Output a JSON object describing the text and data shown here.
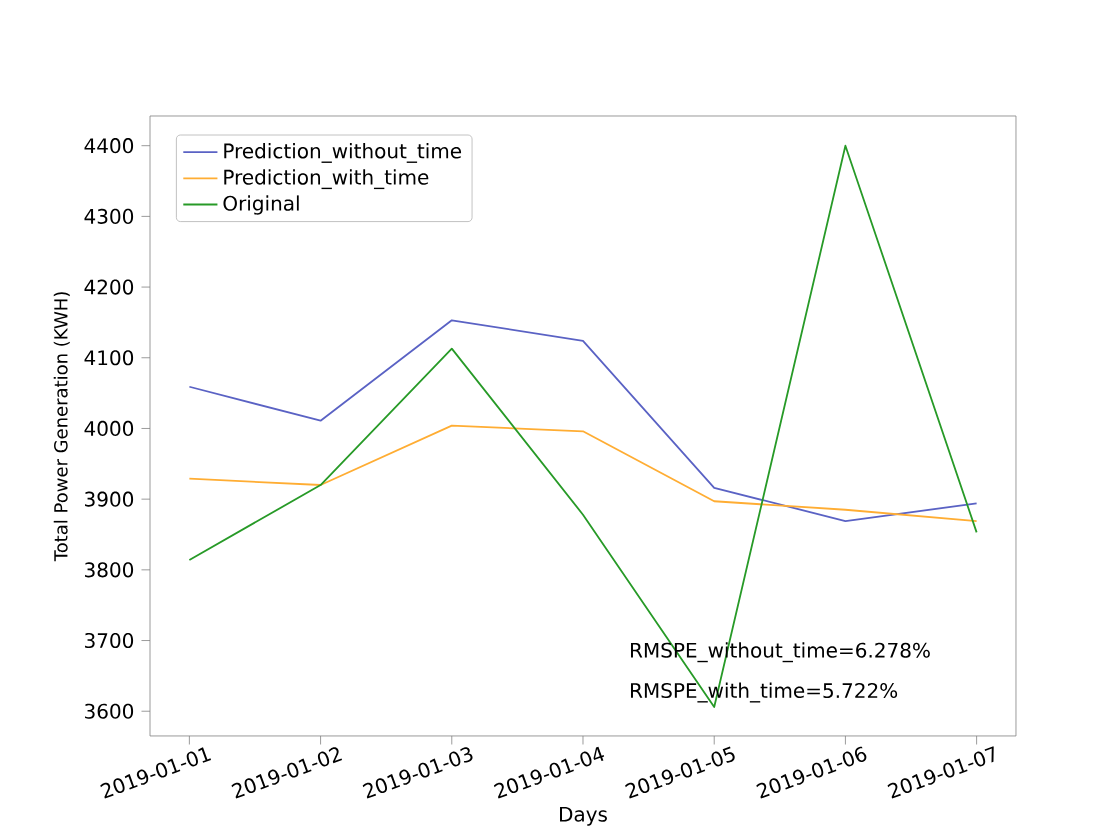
{
  "chart_data": {
    "type": "line",
    "xlabel": "Days",
    "ylabel": "Total Power Generation (KWH)",
    "categories": [
      "2019-01-01",
      "2019-01-02",
      "2019-01-03",
      "2019-01-04",
      "2019-01-05",
      "2019-01-06",
      "2019-01-07"
    ],
    "series": [
      {
        "name": "Prediction_without_time",
        "color": "#5a62c4",
        "values": [
          4059,
          4011,
          4153,
          4124,
          3916,
          3869,
          3894
        ]
      },
      {
        "name": "Prediction_with_time",
        "color": "#ffad33",
        "values": [
          3929,
          3920,
          4004,
          3996,
          3897,
          3885,
          3869
        ]
      },
      {
        "name": "Original",
        "color": "#279a27",
        "values": [
          3814,
          3920,
          4113,
          3878,
          3606,
          4400,
          3853
        ]
      }
    ],
    "ylim": [
      3565,
      4442
    ],
    "yticks": [
      3600,
      3700,
      3800,
      3900,
      4000,
      4100,
      4200,
      4300,
      4400
    ],
    "legend": "top left",
    "marker": "none",
    "line_style": "solid",
    "annotations": [
      "RMSPE_without_time=6.278%",
      "RMSPE_with_time=5.722%"
    ]
  }
}
